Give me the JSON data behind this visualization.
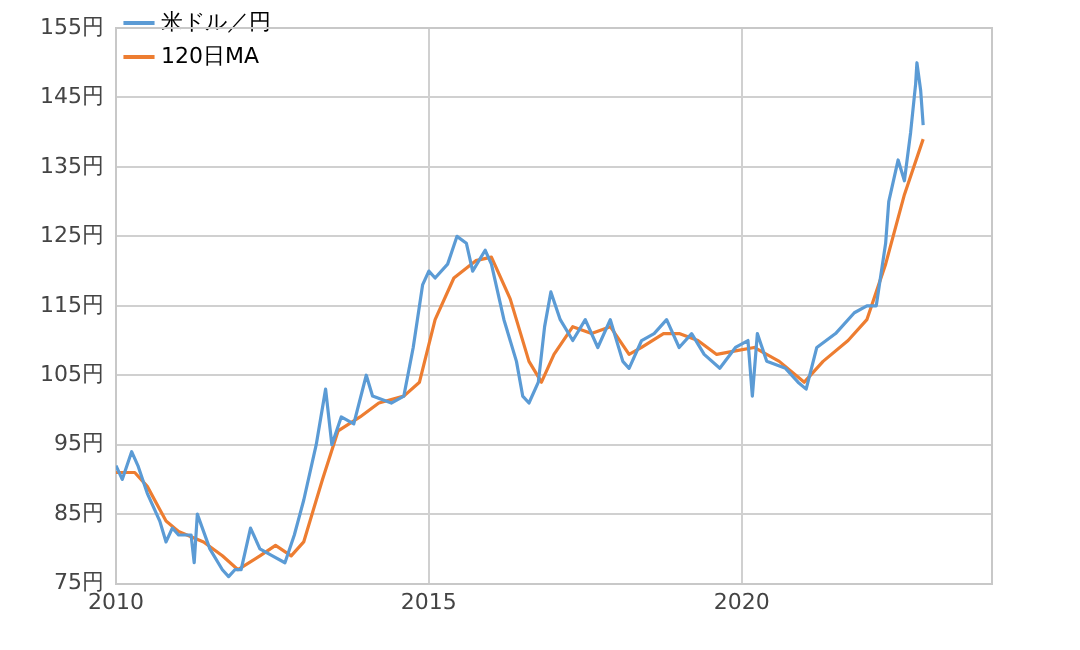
{
  "chart_data": {
    "type": "line",
    "xlim": [
      2010,
      2024
    ],
    "xticks": [
      2010,
      2015,
      2020
    ],
    "ylim": [
      75,
      155
    ],
    "yticks": [
      {
        "value": 75,
        "label": "75円"
      },
      {
        "value": 85,
        "label": "85円"
      },
      {
        "value": 95,
        "label": "95円"
      },
      {
        "value": 105,
        "label": "105円"
      },
      {
        "value": 115,
        "label": "115円"
      },
      {
        "value": 125,
        "label": "125円"
      },
      {
        "value": 135,
        "label": "135円"
      },
      {
        "value": 145,
        "label": "145円"
      },
      {
        "value": 155,
        "label": "155円"
      }
    ],
    "grid": true,
    "legend": "top left",
    "marker": "none",
    "line_style": "solid",
    "series": [
      {
        "name": "米ドル／円",
        "color": "#5b9bd5",
        "x": [
          2010.0,
          2010.1,
          2010.25,
          2010.35,
          2010.5,
          2010.7,
          2010.8,
          2010.9,
          2011.0,
          2011.2,
          2011.25,
          2011.3,
          2011.5,
          2011.7,
          2011.8,
          2011.9,
          2012.0,
          2012.15,
          2012.3,
          2012.5,
          2012.7,
          2012.85,
          2013.0,
          2013.2,
          2013.35,
          2013.45,
          2013.6,
          2013.8,
          2014.0,
          2014.1,
          2014.4,
          2014.6,
          2014.75,
          2014.9,
          2015.0,
          2015.1,
          2015.3,
          2015.45,
          2015.6,
          2015.7,
          2015.9,
          2016.0,
          2016.2,
          2016.4,
          2016.5,
          2016.6,
          2016.75,
          2016.85,
          2016.95,
          2017.1,
          2017.3,
          2017.5,
          2017.7,
          2017.9,
          2018.1,
          2018.2,
          2018.4,
          2018.6,
          2018.8,
          2019.0,
          2019.2,
          2019.4,
          2019.65,
          2019.9,
          2020.1,
          2020.17,
          2020.25,
          2020.4,
          2020.7,
          2020.9,
          2021.03,
          2021.2,
          2021.5,
          2021.8,
          2022.0,
          2022.15,
          2022.3,
          2022.35,
          2022.5,
          2022.6,
          2022.7,
          2022.78,
          2022.8,
          2022.86,
          2022.9
        ],
        "values": [
          92,
          90,
          94,
          92,
          88,
          84,
          81,
          83,
          82,
          82,
          78,
          85,
          80,
          77,
          76,
          77,
          77,
          83,
          80,
          79,
          78,
          82,
          87,
          95,
          103,
          95,
          99,
          98,
          105,
          102,
          101,
          102,
          109,
          118,
          120,
          119,
          121,
          125,
          124,
          120,
          123,
          121,
          113,
          107,
          102,
          101,
          104,
          112,
          117,
          113,
          110,
          113,
          109,
          113,
          107,
          106,
          110,
          111,
          113,
          109,
          111,
          108,
          106,
          109,
          110,
          102,
          111,
          107,
          106,
          104,
          103,
          109,
          111,
          114,
          115,
          115,
          124,
          130,
          136,
          133,
          140,
          147,
          150,
          146,
          141
        ]
      },
      {
        "name": "120日MA",
        "color": "#ed7d31",
        "x": [
          2010.0,
          2010.3,
          2010.5,
          2010.8,
          2011.0,
          2011.4,
          2011.7,
          2011.95,
          2012.3,
          2012.55,
          2012.8,
          2013.0,
          2013.3,
          2013.55,
          2013.9,
          2014.2,
          2014.6,
          2014.85,
          2015.1,
          2015.4,
          2015.75,
          2016.0,
          2016.3,
          2016.6,
          2016.8,
          2017.0,
          2017.3,
          2017.6,
          2017.9,
          2018.2,
          2018.4,
          2018.75,
          2019.0,
          2019.3,
          2019.6,
          2019.9,
          2020.2,
          2020.6,
          2021.0,
          2021.3,
          2021.7,
          2022.0,
          2022.3,
          2022.6,
          2022.9
        ],
        "values": [
          91,
          91,
          89,
          84,
          82.5,
          81,
          79,
          77,
          79,
          80.5,
          79,
          81,
          90,
          97,
          99,
          101,
          102,
          104,
          113,
          119,
          121.5,
          122,
          116,
          107,
          104,
          108,
          112,
          111,
          112,
          108,
          109,
          111,
          111,
          110,
          108,
          108.5,
          109,
          107,
          104,
          107,
          110,
          113,
          121,
          131,
          139
        ]
      }
    ]
  }
}
